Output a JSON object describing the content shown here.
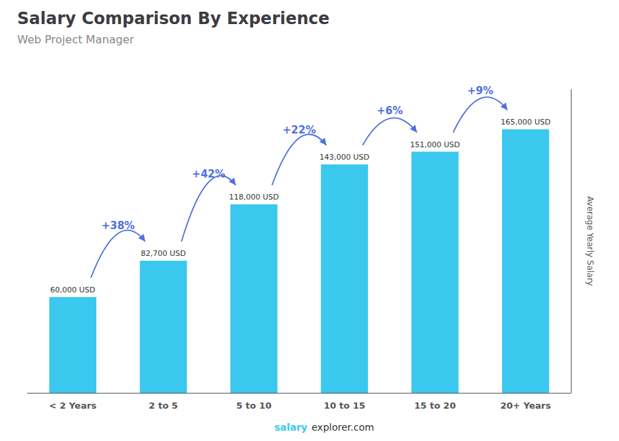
{
  "chart_data": {
    "type": "bar",
    "title": "Salary Comparison By Experience",
    "subtitle": "Web Project Manager",
    "ylabel": "Average Yearly Salary",
    "watermark": [
      "salary",
      "explorer.com"
    ],
    "categories": [
      "< 2 Years",
      "2 to 5",
      "5 to 10",
      "10 to 15",
      "15 to 20",
      "20+ Years"
    ],
    "values": [
      60000,
      82700,
      118000,
      143000,
      151000,
      165000
    ],
    "value_labels": [
      "60,000 USD",
      "82,700 USD",
      "118,000 USD",
      "143,000 USD",
      "151,000 USD",
      "165,000 USD"
    ],
    "annotations": [
      "+38%",
      "+42%",
      "+22%",
      "+6%",
      "+9%"
    ],
    "color": "#3BC8EE",
    "ylim": [
      0,
      190000
    ],
    "grid": false,
    "tick_labels": "x",
    "data_labels": true
  }
}
